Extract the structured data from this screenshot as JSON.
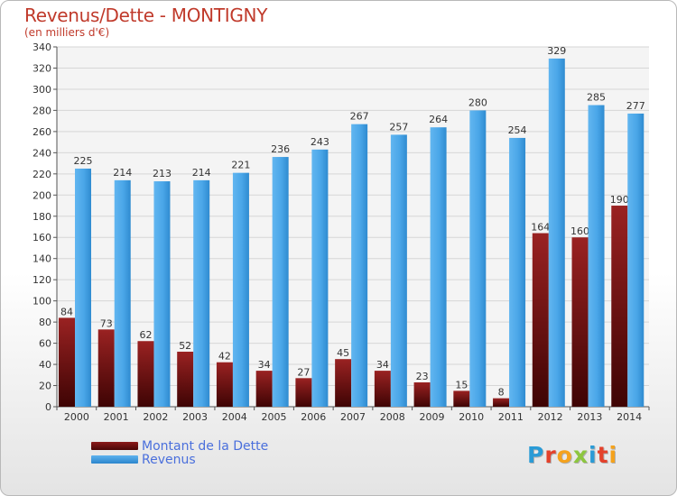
{
  "chart_data": {
    "type": "bar",
    "title": "Revenus/Dette - MONTIGNY",
    "subtitle": "(en milliers d'€)",
    "categories": [
      "2000",
      "2001",
      "2002",
      "2003",
      "2004",
      "2005",
      "2006",
      "2007",
      "2008",
      "2009",
      "2010",
      "2011",
      "2012",
      "2013",
      "2014"
    ],
    "series": [
      {
        "name": "Montant de la Dette",
        "color": "#8b1a1a",
        "values": [
          84,
          73,
          62,
          52,
          42,
          34,
          27,
          45,
          34,
          23,
          15,
          8,
          164,
          160,
          190
        ]
      },
      {
        "name": "Revenus",
        "color": "#3d9fe6",
        "values": [
          225,
          214,
          213,
          214,
          221,
          236,
          243,
          267,
          257,
          264,
          280,
          254,
          329,
          285,
          277
        ]
      }
    ],
    "ylim": [
      0,
      340
    ],
    "yticks": [
      0,
      20,
      40,
      60,
      80,
      100,
      120,
      140,
      160,
      180,
      200,
      220,
      240,
      260,
      280,
      300,
      320,
      340
    ],
    "grid": true,
    "legend_position": "bottom-left"
  },
  "logo_text": "Proxiti"
}
